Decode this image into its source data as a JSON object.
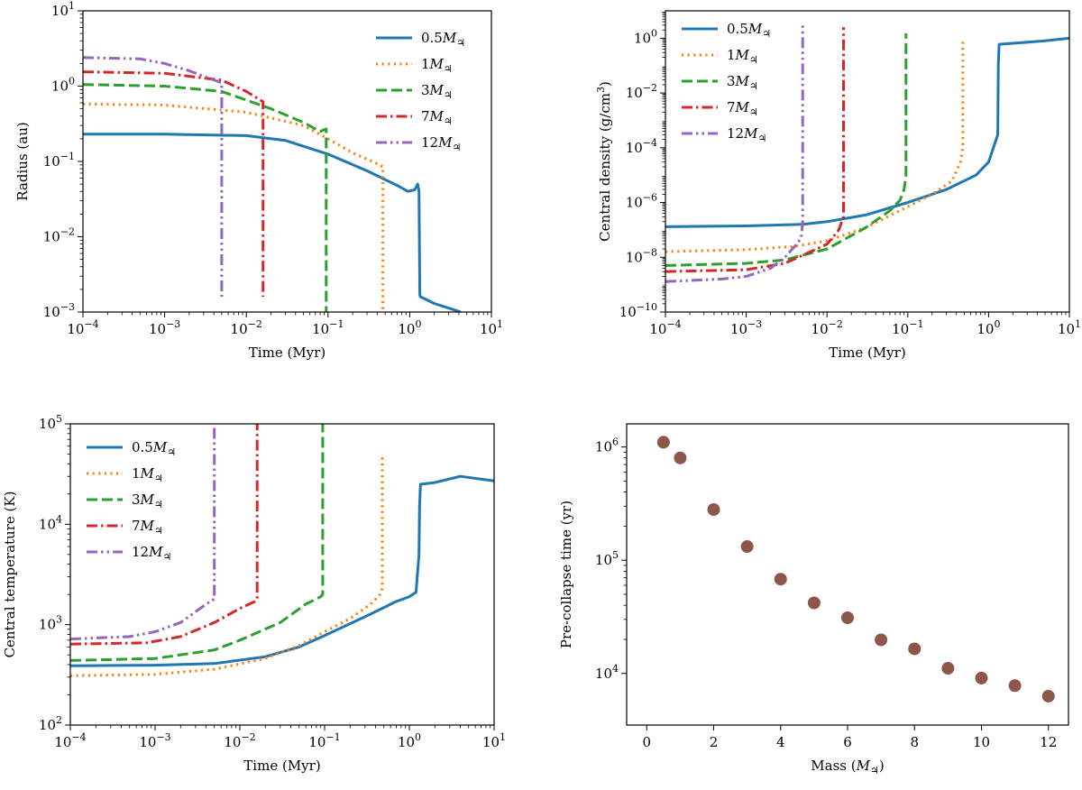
{
  "colors": {
    "blue": "#1f77b4",
    "orange": "#ff7f0e",
    "green": "#2ca02c",
    "red": "#d62728",
    "purple": "#9467bd",
    "brown": "#8c564b"
  },
  "chart_data": [
    {
      "id": "radius",
      "type": "line",
      "xscale": "log",
      "yscale": "log",
      "xlim": [
        0.0001,
        10
      ],
      "ylim": [
        0.001,
        10
      ],
      "xlabel": "Time (Myr)",
      "ylabel": "Radius (au)",
      "xticks": [
        "10^{-4}",
        "10^{-3}",
        "10^{-2}",
        "10^{-1}",
        "10^{0}",
        "10^{1}"
      ],
      "yticks": [
        "10^{-3}",
        "10^{-2}",
        "10^{-1}",
        "10^{0}",
        "10^{1}"
      ],
      "legend": "top-right",
      "series": [
        {
          "name": "0.5",
          "color": "blue",
          "style": "solid",
          "x": [
            0.0001,
            0.001,
            0.01,
            0.03,
            0.1,
            0.3,
            0.7,
            0.95,
            1.15,
            1.25,
            1.3,
            1.33,
            1.35,
            2.0,
            4.2
          ],
          "y": [
            0.23,
            0.23,
            0.22,
            0.19,
            0.125,
            0.075,
            0.048,
            0.04,
            0.042,
            0.05,
            0.04,
            0.0017,
            0.0016,
            0.0013,
            0.001
          ]
        },
        {
          "name": "1",
          "color": "orange",
          "style": "dotted",
          "x": [
            0.0001,
            0.001,
            0.01,
            0.05,
            0.1,
            0.2,
            0.35,
            0.47,
            0.47
          ],
          "y": [
            0.58,
            0.56,
            0.45,
            0.3,
            0.2,
            0.13,
            0.1,
            0.085,
            0.001
          ]
        },
        {
          "name": "3",
          "color": "green",
          "style": "dashed",
          "x": [
            0.0001,
            0.001,
            0.005,
            0.02,
            0.05,
            0.08,
            0.095,
            0.095
          ],
          "y": [
            1.05,
            1.0,
            0.85,
            0.5,
            0.33,
            0.25,
            0.27,
            0.001
          ]
        },
        {
          "name": "7",
          "color": "red",
          "style": "dashdot",
          "x": [
            0.0001,
            0.001,
            0.005,
            0.01,
            0.016,
            0.016
          ],
          "y": [
            1.55,
            1.48,
            1.2,
            0.85,
            0.62,
            0.0016
          ]
        },
        {
          "name": "12",
          "color": "purple",
          "style": "dashdotdot",
          "x": [
            0.0001,
            0.0005,
            0.001,
            0.002,
            0.0045,
            0.005,
            0.005
          ],
          "y": [
            2.4,
            2.3,
            2.0,
            1.6,
            1.15,
            1.1,
            0.0016
          ]
        }
      ]
    },
    {
      "id": "density",
      "type": "line",
      "xscale": "log",
      "yscale": "log",
      "xlim": [
        0.0001,
        10
      ],
      "ylim": [
        1e-10,
        10
      ],
      "xlabel": "Time (Myr)",
      "ylabel": "Central density (g/cm",
      "ylabel_sup": "3",
      "ylabel_end": ")",
      "xticks": [
        "10^{-4}",
        "10^{-3}",
        "10^{-2}",
        "10^{-1}",
        "10^{0}",
        "10^{1}"
      ],
      "yticks": [
        "10^{-10}",
        "10^{-8}",
        "10^{-6}",
        "10^{-4}",
        "10^{-2}",
        "10^{0}"
      ],
      "legend": "top-left",
      "series": [
        {
          "name": "0.5",
          "color": "blue",
          "style": "solid",
          "x": [
            0.0001,
            0.001,
            0.005,
            0.01,
            0.03,
            0.1,
            0.3,
            0.7,
            1.0,
            1.2,
            1.3,
            1.32,
            1.35,
            2.0,
            5.0,
            10
          ],
          "y": [
            1.3e-07,
            1.4e-07,
            1.6e-07,
            2e-07,
            3.5e-07,
            1e-06,
            3e-06,
            1e-05,
            3e-05,
            0.00015,
            0.0003,
            0.1,
            0.6,
            0.65,
            0.8,
            1.0
          ]
        },
        {
          "name": "1",
          "color": "orange",
          "style": "dotted",
          "x": [
            0.0001,
            0.001,
            0.004,
            0.01,
            0.03,
            0.1,
            0.2,
            0.35,
            0.45,
            0.48,
            0.48
          ],
          "y": [
            1.6e-08,
            1.9e-08,
            2.5e-08,
            4e-08,
            1.2e-07,
            7e-07,
            2e-06,
            6e-06,
            3e-05,
            0.0001,
            1.0
          ]
        },
        {
          "name": "3",
          "color": "green",
          "style": "dashed",
          "x": [
            0.0001,
            0.001,
            0.003,
            0.01,
            0.03,
            0.06,
            0.08,
            0.09,
            0.095,
            0.095
          ],
          "y": [
            5e-09,
            6e-09,
            8e-09,
            2e-08,
            1.2e-07,
            5e-07,
            1.2e-06,
            3e-06,
            1e-05,
            1.5
          ]
        },
        {
          "name": "7",
          "color": "red",
          "style": "dashdot",
          "x": [
            0.0001,
            0.001,
            0.003,
            0.006,
            0.01,
            0.014,
            0.016,
            0.016
          ],
          "y": [
            3e-09,
            3.5e-09,
            6e-09,
            1.5e-08,
            3e-08,
            1e-07,
            3e-07,
            2.5
          ]
        },
        {
          "name": "12",
          "color": "purple",
          "style": "dashdotdot",
          "x": [
            0.0001,
            0.0005,
            0.001,
            0.002,
            0.003,
            0.004,
            0.0048,
            0.005,
            0.005
          ],
          "y": [
            1.3e-09,
            1.6e-09,
            2e-09,
            4e-09,
            1e-08,
            2.5e-08,
            5e-08,
            2e-07,
            3
          ]
        }
      ]
    },
    {
      "id": "temperature",
      "type": "line",
      "xscale": "log",
      "yscale": "log",
      "xlim": [
        0.0001,
        10
      ],
      "ylim": [
        100,
        100000
      ],
      "xlabel": "Time (Myr)",
      "ylabel": "Central temperature (K)",
      "xticks": [
        "10^{-4}",
        "10^{-3}",
        "10^{-2}",
        "10^{-1}",
        "10^{0}",
        "10^{1}"
      ],
      "yticks": [
        "10^{2}",
        "10^{3}",
        "10^{4}",
        "10^{5}"
      ],
      "legend": "top-left",
      "series": [
        {
          "name": "0.5",
          "color": "blue",
          "style": "solid",
          "x": [
            0.0001,
            0.001,
            0.005,
            0.02,
            0.05,
            0.1,
            0.3,
            0.7,
            1.0,
            1.2,
            1.3,
            1.32,
            1.35,
            2.0,
            4.0,
            10
          ],
          "y": [
            390,
            395,
            410,
            480,
            600,
            780,
            1200,
            1700,
            1900,
            2100,
            5000,
            15000,
            25000,
            26000,
            30000,
            27000
          ]
        },
        {
          "name": "1",
          "color": "orange",
          "style": "dotted",
          "x": [
            0.0001,
            0.001,
            0.005,
            0.02,
            0.05,
            0.1,
            0.2,
            0.35,
            0.45,
            0.48,
            0.48
          ],
          "y": [
            310,
            320,
            360,
            460,
            620,
            850,
            1150,
            1600,
            2000,
            2300,
            48000
          ]
        },
        {
          "name": "3",
          "color": "green",
          "style": "dashed",
          "x": [
            0.0001,
            0.001,
            0.005,
            0.01,
            0.03,
            0.06,
            0.08,
            0.09,
            0.095,
            0.095
          ],
          "y": [
            440,
            460,
            560,
            700,
            1050,
            1600,
            1800,
            1900,
            2000,
            100000
          ]
        },
        {
          "name": "7",
          "color": "red",
          "style": "dashdot",
          "x": [
            0.0001,
            0.0008,
            0.002,
            0.005,
            0.01,
            0.015,
            0.016,
            0.016
          ],
          "y": [
            640,
            660,
            760,
            1050,
            1450,
            1700,
            1800,
            100000
          ]
        },
        {
          "name": "12",
          "color": "purple",
          "style": "dashdotdot",
          "x": [
            0.0001,
            0.0005,
            0.001,
            0.002,
            0.004,
            0.005,
            0.005
          ],
          "y": [
            720,
            760,
            850,
            1050,
            1600,
            1800,
            100000
          ]
        }
      ]
    },
    {
      "id": "precollapse",
      "type": "scatter",
      "xscale": "linear",
      "yscale": "log",
      "xlim": [
        -0.6,
        12.6
      ],
      "ylim": [
        3500,
        1600000
      ],
      "xlabel": "Mass (",
      "xlabel_end": ")",
      "ylabel": "Pre-collapse time (yr)",
      "xtick_values": [
        0,
        2,
        4,
        6,
        8,
        10,
        12
      ],
      "xticks": [
        "0",
        "2",
        "4",
        "6",
        "8",
        "10",
        "12"
      ],
      "yticks": [
        "10^{4}",
        "10^{5}",
        "10^{6}"
      ],
      "color": "brown",
      "x": [
        0.5,
        1,
        2,
        3,
        4,
        5,
        6,
        7,
        8,
        9,
        10,
        11,
        12
      ],
      "y": [
        1100000,
        800000,
        280000,
        132000,
        68000,
        42000,
        31000,
        19800,
        16500,
        11100,
        9100,
        7800,
        6300
      ]
    }
  ],
  "legend_labels": [
    "0.5",
    "1",
    "3",
    "7",
    "12"
  ],
  "legend_symbol": "M",
  "legend_sub": "♃"
}
